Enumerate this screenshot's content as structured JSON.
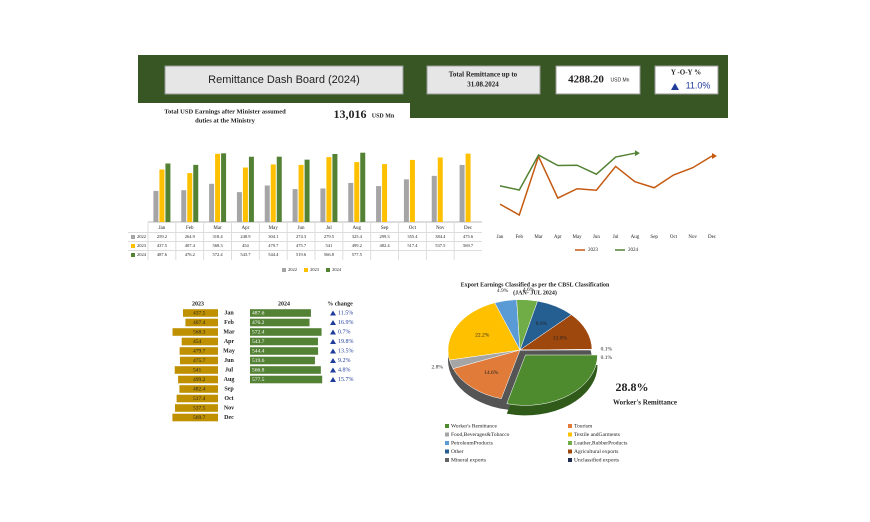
{
  "header": {
    "title": "Remittance Dash Board (2024)",
    "total_label_1": "Total Remittance up to",
    "total_label_2": "31.08.2024",
    "total_value": "4288.20",
    "total_unit": "USD Mn",
    "yoy_label": "Y -O-Y %",
    "yoy_value": "11.0%"
  },
  "earnings": {
    "label_1": "Total USD Earnings after Minister assumed",
    "label_2": "duties at the Ministry",
    "value": "13,016",
    "unit": "USD Mn"
  },
  "chart_data": [
    {
      "type": "bar",
      "categories": [
        "Jan",
        "Feb",
        "Mar",
        "Apr",
        "May",
        "Jun",
        "Jul",
        "Aug",
        "Sep",
        "Oct",
        "Nov",
        "Dec"
      ],
      "ylim": [
        0,
        600
      ],
      "series": [
        {
          "name": "2022",
          "color": "#a5a5a5",
          "values": [
            259.2,
            264.9,
            318.4,
            248.9,
            304.1,
            274.3,
            279.5,
            325.4,
            299.3,
            355.4,
            384.4,
            475.6
          ]
        },
        {
          "name": "2023",
          "color": "#ffc000",
          "values": [
            437.5,
            407.4,
            568.3,
            454.0,
            479.7,
            475.7,
            541.0,
            499.2,
            482.4,
            517.4,
            537.5,
            569.7
          ]
        },
        {
          "name": "2024",
          "color": "#548235",
          "values": [
            487.6,
            476.2,
            572.4,
            543.7,
            544.4,
            519.6,
            566.8,
            577.5,
            null,
            null,
            null,
            null
          ]
        }
      ]
    },
    {
      "type": "line",
      "categories": [
        "Jan",
        "Feb",
        "Mar",
        "Apr",
        "May",
        "Jun",
        "Jul",
        "Aug",
        "Sep",
        "Oct",
        "Nov",
        "Dec"
      ],
      "ylim": [
        380,
        600
      ],
      "series": [
        {
          "name": "2023",
          "color": "#c55a11",
          "values": [
            437.5,
            407.4,
            568.3,
            454.0,
            479.7,
            475.7,
            541.0,
            499.2,
            482.4,
            517.4,
            537.5,
            569.7
          ]
        },
        {
          "name": "2024",
          "color": "#548235",
          "values": [
            487.6,
            476.2,
            572.4,
            543.7,
            544.4,
            519.6,
            566.8,
            577.5,
            null,
            null,
            null,
            null
          ]
        }
      ]
    },
    {
      "type": "hbar",
      "categories": [
        "Jan",
        "Feb",
        "Mar",
        "Apr",
        "May",
        "Jun",
        "Jul",
        "Aug",
        "Sep",
        "Oct",
        "Nov",
        "Dec"
      ],
      "xlim": [
        0,
        600
      ],
      "series": [
        {
          "name": "2023",
          "color": "#bf9000",
          "values": [
            437.5,
            407.4,
            568.3,
            454,
            479.7,
            475.7,
            541,
            499.2,
            482.4,
            517.4,
            537.5,
            569.7
          ]
        },
        {
          "name": "2024",
          "color": "#548235",
          "values": [
            487.6,
            476.2,
            572.4,
            543.7,
            544.4,
            519.6,
            566.8,
            577.5,
            null,
            null,
            null,
            null
          ]
        }
      ],
      "change": {
        "name": "% change",
        "values": [
          11.5,
          16.9,
          0.7,
          19.8,
          13.5,
          9.2,
          4.8,
          15.7
        ],
        "value_labels": [
          "11.5%",
          "16.9%",
          "0.7%",
          "19.8%",
          "13.5%",
          "9.2%",
          "4.8%",
          "15.7%"
        ]
      }
    },
    {
      "type": "pie",
      "title": "Export Earnings Classified as per the CBSL Classification",
      "subtitle": "(JAN- JUL 2024)",
      "categories": [
        "Worker's Remittance",
        "Tourism",
        "Food,Beverages&Tobacco",
        "Textile andGarments",
        "PetroleumProducts",
        "Leather,RubberProducts",
        "Other",
        "Agricultural exports",
        "Mineral exports",
        "Unclassified exports"
      ],
      "values": [
        28.8,
        14.6,
        2.8,
        22.2,
        4.9,
        4.6,
        8.6,
        12.0,
        0.1,
        0.1
      ],
      "value_labels": [
        "28.8%",
        "14.6%",
        "2.8%",
        "22.2%",
        "4.9%",
        "4.6%",
        "8.6%",
        "12.0%",
        "0.1%",
        "0.1%"
      ],
      "colors": [
        "#4e8b2e",
        "#e07b39",
        "#a5a5a5",
        "#ffc000",
        "#5b9bd5",
        "#70ad47",
        "#255e91",
        "#9e480e",
        "#636363",
        "#1f2d50"
      ]
    }
  ]
}
